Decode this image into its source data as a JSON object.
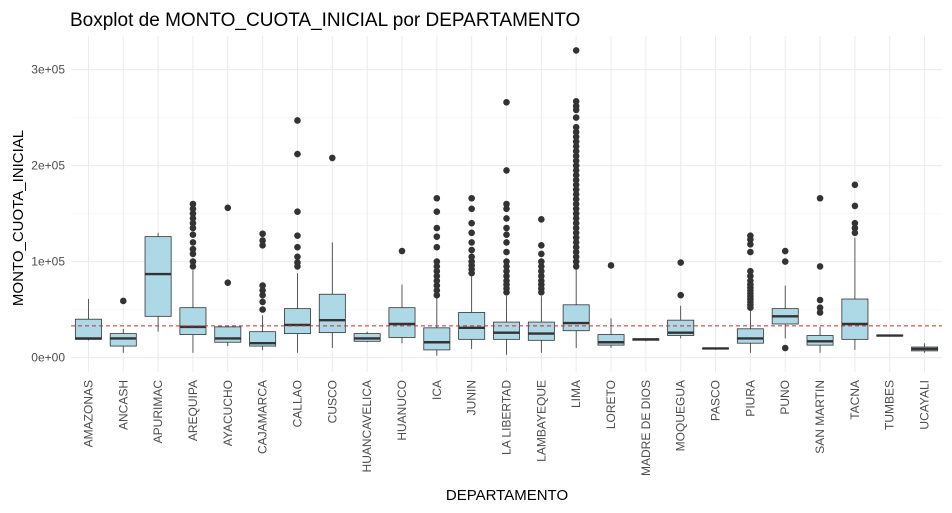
{
  "chart_data": {
    "type": "boxplot",
    "title": "Boxplot de MONTO_CUOTA_INICIAL por DEPARTAMENTO",
    "xlabel": "DEPARTAMENTO",
    "ylabel": "MONTO_CUOTA_INICIAL",
    "ylim": [
      -15000,
      335000
    ],
    "y_ticks": [
      0,
      100000,
      200000,
      300000
    ],
    "y_tick_labels": [
      "0e+00",
      "1e+05",
      "2e+05",
      "3e+05"
    ],
    "reference_line": {
      "y": 33000,
      "color": "#d62728",
      "style": "dashed"
    },
    "box_fill": "#add8e6",
    "box_stroke": "#333333",
    "outlier_color": "#333333",
    "categories": [
      "AMAZONAS",
      "ANCASH",
      "APURIMAC",
      "AREQUIPA",
      "AYACUCHO",
      "CAJAMARCA",
      "CALLAO",
      "CUSCO",
      "HUANCAVELICA",
      "HUANUCO",
      "ICA",
      "JUNIN",
      "LA LIBERTAD",
      "LAMBAYEQUE",
      "LIMA",
      "LORETO",
      "MADRE DE DIOS",
      "MOQUEGUA",
      "PASCO",
      "PIURA",
      "PUNO",
      "SAN MARTIN",
      "TACNA",
      "TUMBES",
      "UCAYALI"
    ],
    "boxes": [
      {
        "min": 18000,
        "q1": 19000,
        "median": 20000,
        "q3": 40000,
        "max": 61000,
        "outliers": []
      },
      {
        "min": 5000,
        "q1": 12000,
        "median": 20000,
        "q3": 25000,
        "max": 30000,
        "outliers": [
          59000
        ]
      },
      {
        "min": 27000,
        "q1": 43000,
        "median": 87000,
        "q3": 126000,
        "max": 130000,
        "outliers": []
      },
      {
        "min": 5000,
        "q1": 24000,
        "median": 32000,
        "q3": 52000,
        "max": 91000,
        "outliers": [
          95000,
          100000,
          108000,
          113000,
          120000,
          128000,
          135000,
          140000,
          145000,
          150000,
          155000,
          160000
        ]
      },
      {
        "min": 12000,
        "q1": 16000,
        "median": 20000,
        "q3": 32000,
        "max": 32000,
        "outliers": [
          78000,
          156000
        ]
      },
      {
        "min": 8000,
        "q1": 12000,
        "median": 15000,
        "q3": 27000,
        "max": 44000,
        "outliers": [
          50000,
          58000,
          65000,
          70000,
          75000,
          117000,
          122000,
          129000
        ]
      },
      {
        "min": 5000,
        "q1": 25000,
        "median": 34000,
        "q3": 51000,
        "max": 88000,
        "outliers": [
          95000,
          99000,
          105000,
          115000,
          127000,
          152000,
          212000,
          247000
        ]
      },
      {
        "min": 10000,
        "q1": 26000,
        "median": 39000,
        "q3": 66000,
        "max": 120000,
        "outliers": [
          208000
        ]
      },
      {
        "min": 16000,
        "q1": 17000,
        "median": 20000,
        "q3": 25000,
        "max": 27000,
        "outliers": []
      },
      {
        "min": 15000,
        "q1": 21000,
        "median": 35000,
        "q3": 52000,
        "max": 76000,
        "outliers": [
          111000
        ]
      },
      {
        "min": 2000,
        "q1": 8000,
        "median": 16000,
        "q3": 31000,
        "max": 62000,
        "outliers": [
          65000,
          70000,
          75000,
          80000,
          85000,
          90000,
          95000,
          100000,
          115000,
          126000,
          135000,
          152000,
          166000
        ]
      },
      {
        "min": 9000,
        "q1": 19000,
        "median": 31000,
        "q3": 47000,
        "max": 85000,
        "outliers": [
          88000,
          92000,
          96000,
          100000,
          105000,
          112000,
          120000,
          130000,
          140000,
          155000,
          166000
        ]
      },
      {
        "min": 3000,
        "q1": 19000,
        "median": 26000,
        "q3": 37000,
        "max": 64000,
        "outliers": [
          68000,
          72000,
          76000,
          80000,
          85000,
          90000,
          95000,
          100000,
          110000,
          120000,
          128000,
          135000,
          145000,
          155000,
          160000,
          195000,
          266000
        ]
      },
      {
        "min": 5000,
        "q1": 18000,
        "median": 25000,
        "q3": 37000,
        "max": 64000,
        "outliers": [
          68000,
          72000,
          76000,
          80000,
          85000,
          90000,
          95000,
          100000,
          108000,
          117000,
          144000
        ]
      },
      {
        "min": 10000,
        "q1": 28000,
        "median": 36000,
        "q3": 55000,
        "max": 92000,
        "outliers": [
          95000,
          100000,
          105000,
          110000,
          115000,
          120000,
          125000,
          130000,
          135000,
          140000,
          145000,
          150000,
          155000,
          160000,
          165000,
          170000,
          175000,
          180000,
          185000,
          190000,
          195000,
          200000,
          205000,
          210000,
          215000,
          220000,
          225000,
          230000,
          235000,
          240000,
          250000,
          258000,
          262000,
          267000,
          320000
        ]
      },
      {
        "min": 10000,
        "q1": 13000,
        "median": 16000,
        "q3": 24000,
        "max": 41000,
        "outliers": [
          96000
        ]
      },
      {
        "min": 17000,
        "q1": 18000,
        "median": 19000,
        "q3": 19500,
        "max": 20000,
        "outliers": []
      },
      {
        "min": 20000,
        "q1": 23000,
        "median": 26000,
        "q3": 39000,
        "max": 54000,
        "outliers": [
          65000,
          99000
        ]
      },
      {
        "min": 8000,
        "q1": 9000,
        "median": 9500,
        "q3": 10000,
        "max": 10500,
        "outliers": []
      },
      {
        "min": 5000,
        "q1": 15000,
        "median": 20000,
        "q3": 30000,
        "max": 50000,
        "outliers": [
          52000,
          55000,
          58000,
          61000,
          64000,
          67000,
          70000,
          73000,
          76000,
          80000,
          85000,
          90000,
          110000,
          118000,
          123000,
          127000
        ]
      },
      {
        "min": 20000,
        "q1": 35000,
        "median": 43000,
        "q3": 51000,
        "max": 75000,
        "outliers": [
          10000,
          100000,
          111000
        ]
      },
      {
        "min": 5000,
        "q1": 13000,
        "median": 17000,
        "q3": 23000,
        "max": 32000,
        "outliers": [
          47000,
          52000,
          60000,
          95000,
          166000
        ]
      },
      {
        "min": 8000,
        "q1": 19000,
        "median": 35000,
        "q3": 61000,
        "max": 125000,
        "outliers": [
          130000,
          135000,
          140000,
          158000,
          180000
        ]
      },
      {
        "min": 22000,
        "q1": 22500,
        "median": 23000,
        "q3": 23500,
        "max": 24000,
        "outliers": []
      },
      {
        "min": 5000,
        "q1": 7000,
        "median": 9000,
        "q3": 11000,
        "max": 15000,
        "outliers": []
      }
    ]
  }
}
